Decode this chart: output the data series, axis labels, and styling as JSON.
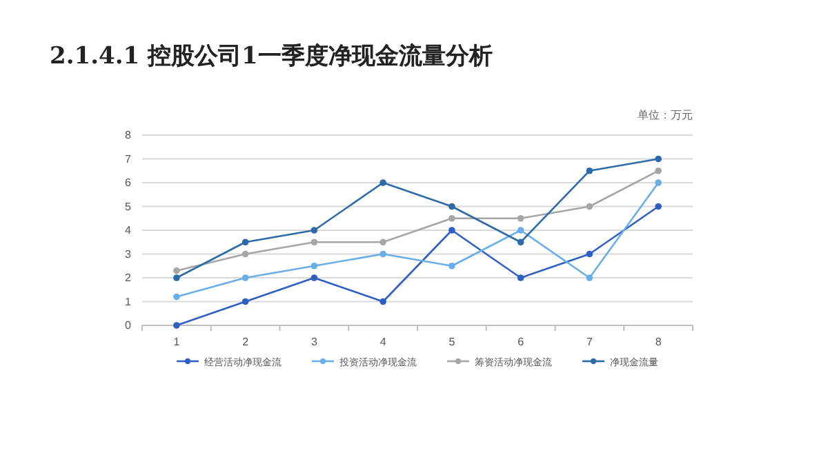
{
  "chart_data": {
    "type": "line",
    "title": "2.1.4.1 控股公司1一季度净现金流量分析",
    "annotations": [
      "单位：万元"
    ],
    "categories": [
      "1",
      "2",
      "3",
      "4",
      "5",
      "6",
      "7",
      "8"
    ],
    "series": [
      {
        "name": "经营活动净现金流",
        "color": "#2e5fc1",
        "values": [
          0,
          1,
          2,
          1,
          4,
          2,
          3,
          5
        ]
      },
      {
        "name": "投资活动净现金流",
        "color": "#6aaee8",
        "values": [
          1.2,
          2,
          2.5,
          3,
          2.5,
          4,
          2,
          6
        ]
      },
      {
        "name": "筹资活动净现金流",
        "color": "#a6a6a6",
        "values": [
          2.3,
          3,
          3.5,
          3.5,
          4.5,
          4.5,
          5,
          6.5
        ]
      },
      {
        "name": "净现金流量",
        "color": "#2f6aa8",
        "values": [
          2,
          3.5,
          4,
          6,
          5,
          3.5,
          6.5,
          7
        ]
      }
    ],
    "ylim": [
      0,
      8
    ],
    "yticks": [
      0,
      1,
      2,
      3,
      4,
      5,
      6,
      7,
      8
    ],
    "grid": "y",
    "legend": "bottom",
    "marker": "circle",
    "line_style": "solid"
  }
}
